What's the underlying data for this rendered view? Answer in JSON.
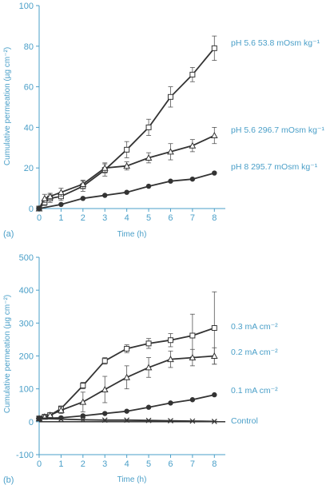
{
  "colors": {
    "accent": "#4a9fc8",
    "series": "#333333"
  },
  "chart_data": [
    {
      "type": "line",
      "panel_label": "(a)",
      "xlabel": "Time (h)",
      "ylabel": "Cumulative permeation (µg cm⁻²)",
      "xlim": [
        0,
        8.5
      ],
      "ylim": [
        0,
        100
      ],
      "xticks": [
        "0",
        "1",
        "2",
        "3",
        "4",
        "5",
        "6",
        "7",
        "8"
      ],
      "yticks": [
        "0",
        "20",
        "40",
        "60",
        "80",
        "100"
      ],
      "grid": false,
      "series": [
        {
          "name": "pH 5.6 53.8 mOsm kg⁻¹",
          "marker": "square",
          "x": [
            0,
            0.25,
            0.5,
            1,
            2,
            3,
            4,
            5,
            6,
            7,
            8
          ],
          "y": [
            0,
            3,
            5,
            6,
            11,
            19,
            29,
            40,
            55,
            66,
            79
          ],
          "err": [
            0,
            1.5,
            2,
            2,
            2.5,
            3,
            4,
            4,
            5,
            3.5,
            6
          ]
        },
        {
          "name": "pH 5.6 296.7 mOsm kg⁻¹",
          "marker": "triangle",
          "x": [
            0,
            0.25,
            0.5,
            1,
            2,
            3,
            4,
            5,
            6,
            7,
            8
          ],
          "y": [
            0,
            5,
            6,
            8,
            12,
            20,
            21,
            25,
            28,
            31,
            36
          ],
          "err": [
            0,
            2,
            1.5,
            2,
            2,
            2.5,
            2,
            2.5,
            4,
            3,
            4
          ]
        },
        {
          "name": "pH 8    295.7 mOsm kg⁻¹",
          "marker": "circle",
          "x": [
            0,
            1,
            2,
            3,
            4,
            5,
            6,
            7,
            8
          ],
          "y": [
            0,
            2,
            5,
            6.5,
            8,
            11,
            13.5,
            14.5,
            17.5
          ],
          "err": [
            0,
            0,
            0,
            0,
            0,
            0,
            0,
            0,
            0
          ]
        }
      ]
    },
    {
      "type": "line",
      "panel_label": "(b)",
      "xlabel": "Time (h)",
      "ylabel": "Cumulative permeation (µg cm⁻²)",
      "xlim": [
        0,
        8.5
      ],
      "ylim": [
        -100,
        500
      ],
      "xticks": [
        "0",
        "1",
        "2",
        "3",
        "4",
        "5",
        "6",
        "7",
        "8"
      ],
      "yticks": [
        "-100",
        "0",
        "100",
        "200",
        "300",
        "400",
        "500"
      ],
      "grid": false,
      "series": [
        {
          "name": "0.3 mA cm⁻²",
          "marker": "square",
          "x": [
            0,
            0.25,
            0.5,
            1,
            2,
            3,
            4,
            5,
            6,
            7,
            8
          ],
          "y": [
            10,
            15,
            20,
            40,
            110,
            185,
            222,
            238,
            248,
            262,
            285
          ],
          "err": [
            0,
            3,
            5,
            8,
            10,
            10,
            12,
            15,
            20,
            65,
            110
          ]
        },
        {
          "name": "0.2 mA cm⁻²",
          "marker": "triangle",
          "x": [
            0,
            0.25,
            0.5,
            1,
            2,
            3,
            4,
            5,
            6,
            7,
            8
          ],
          "y": [
            10,
            15,
            20,
            35,
            60,
            98,
            135,
            165,
            190,
            195,
            200
          ],
          "err": [
            0,
            5,
            8,
            10,
            30,
            40,
            35,
            30,
            25,
            25,
            25
          ]
        },
        {
          "name": "0.1 mA cm⁻²",
          "marker": "circle",
          "x": [
            0,
            1,
            2,
            3,
            4,
            5,
            6,
            7,
            8
          ],
          "y": [
            10,
            12,
            18,
            25,
            32,
            44,
            57,
            67,
            82
          ],
          "err": [
            0,
            0,
            0,
            0,
            0,
            0,
            0,
            0,
            0
          ]
        },
        {
          "name": "Control",
          "marker": "star",
          "x": [
            0,
            1,
            2,
            3,
            4,
            5,
            6,
            7,
            8
          ],
          "y": [
            10,
            8,
            6,
            5,
            5,
            4,
            3,
            2,
            1
          ],
          "err": [
            0,
            0,
            0,
            0,
            0,
            0,
            0,
            0,
            0
          ]
        }
      ]
    }
  ]
}
